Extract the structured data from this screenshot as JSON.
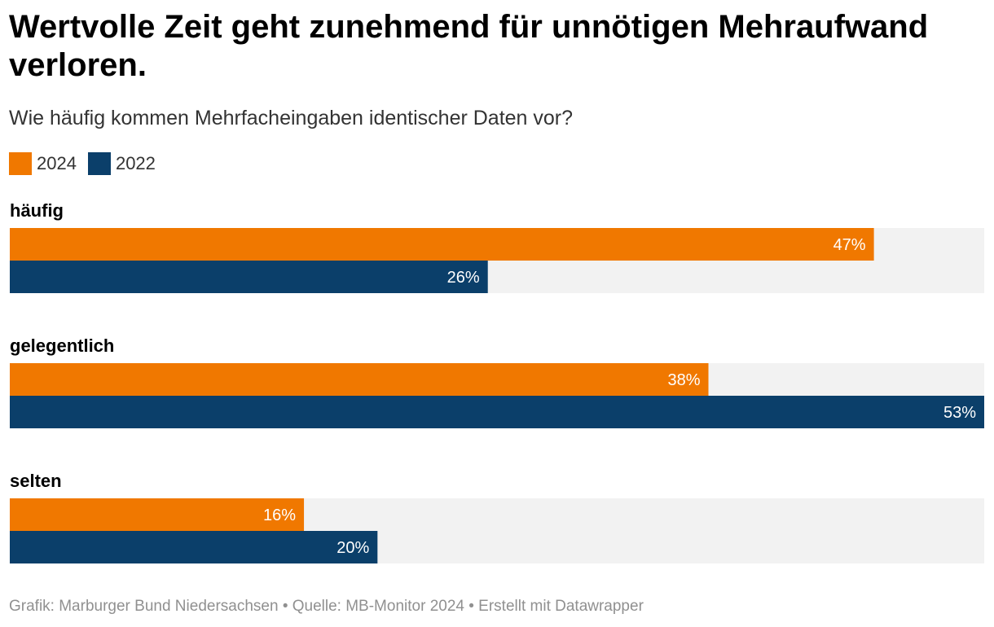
{
  "title": "Wertvolle Zeit geht zunehmend für unnötigen Mehraufwand verloren.",
  "subtitle": "Wie häufig kommen Mehrfacheingaben identischer Daten vor?",
  "legend": [
    {
      "label": "2024",
      "color": "#f07800"
    },
    {
      "label": "2022",
      "color": "#0b3f6a"
    }
  ],
  "colors": {
    "track": "#f2f2f2",
    "value_label": "#ffffff"
  },
  "footer": {
    "text": "Grafik: Marburger Bund Niedersachsen • Quelle: MB-Monitor 2024 • Erstellt mit Datawrapper"
  },
  "chart_data": {
    "type": "bar",
    "orientation": "horizontal",
    "title": "Wertvolle Zeit geht zunehmend für unnötigen Mehraufwand verloren.",
    "subtitle": "Wie häufig kommen Mehrfacheingaben identischer Daten vor?",
    "categories": [
      "häufig",
      "gelegentlich",
      "selten"
    ],
    "series": [
      {
        "name": "2024",
        "values": [
          47,
          38,
          16
        ],
        "labels": [
          "47%",
          "38%",
          "16%"
        ],
        "color": "#f07800"
      },
      {
        "name": "2022",
        "values": [
          26,
          53,
          20
        ],
        "labels": [
          "26%",
          "53%",
          "20%"
        ],
        "color": "#0b3f6a"
      }
    ],
    "xlim": [
      0,
      53
    ],
    "unit": "%",
    "grid": false,
    "legend_position": "top-left"
  }
}
